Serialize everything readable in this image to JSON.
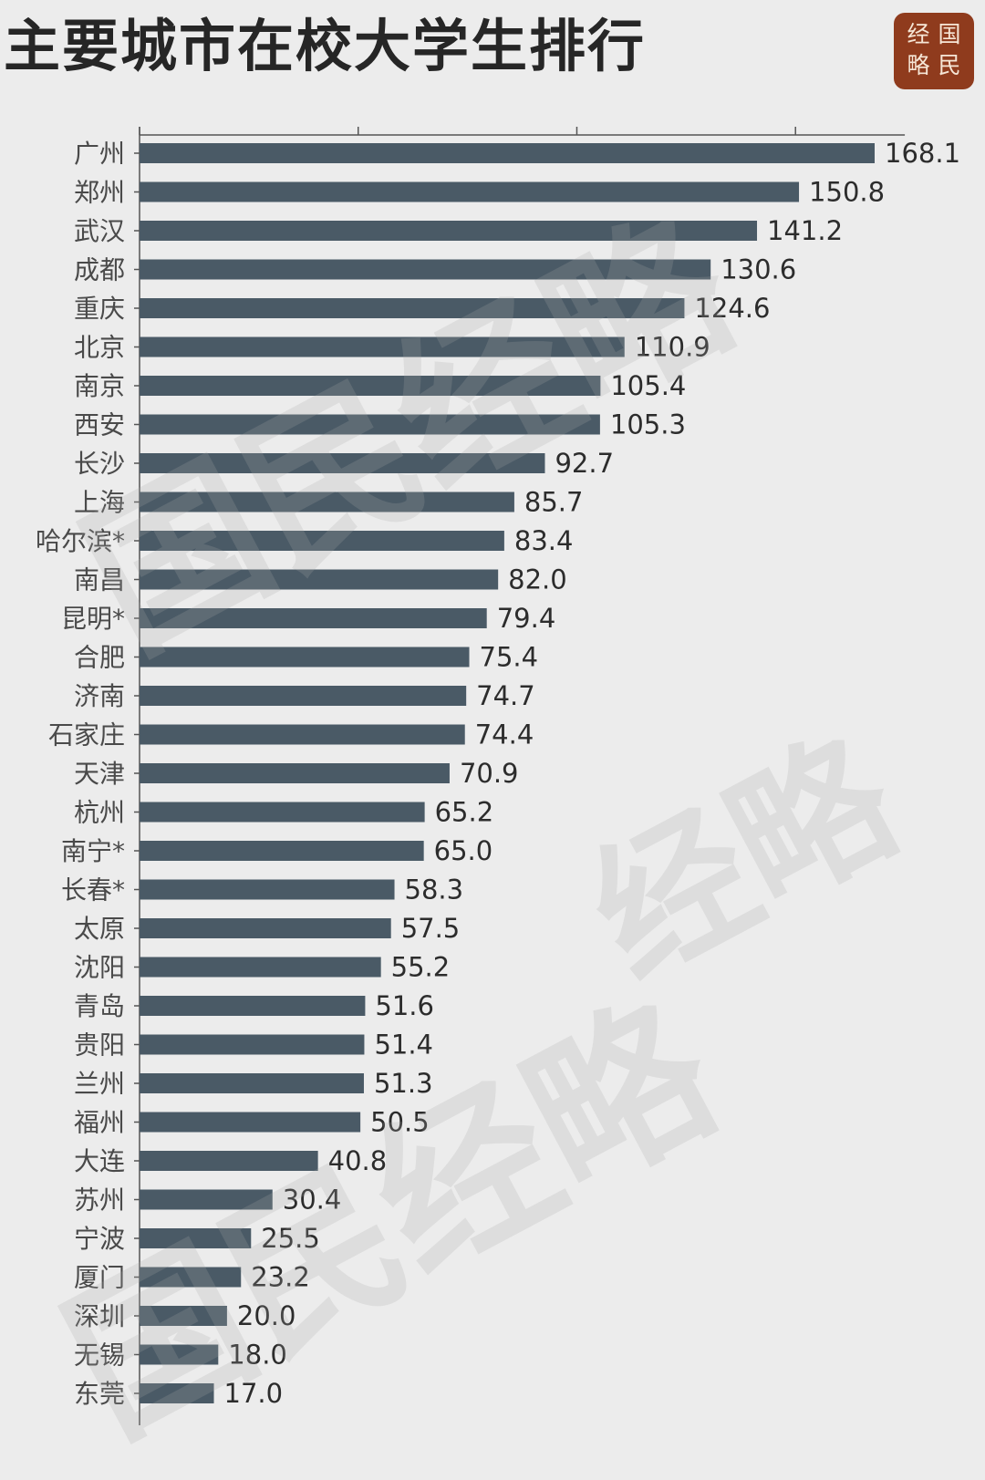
{
  "title": "主要城市在校大学生排行",
  "logo": {
    "chars": [
      "经",
      "国",
      "略",
      "民"
    ]
  },
  "watermark": [
    "国民经略",
    "国民经略",
    "经略"
  ],
  "colors": {
    "bar": "#4a5a66",
    "axis": "#555555",
    "background": "#ececec",
    "logo": "#8f3b1d"
  },
  "chart_data": {
    "type": "bar",
    "orientation": "horizontal",
    "title": "主要城市在校大学生排行",
    "xlim": [
      0,
      175
    ],
    "xticks": [
      0,
      50,
      100,
      150
    ],
    "grid": false,
    "categories": [
      "广州",
      "郑州",
      "武汉",
      "成都",
      "重庆",
      "北京",
      "南京",
      "西安",
      "长沙",
      "上海",
      "哈尔滨*",
      "南昌",
      "昆明*",
      "合肥",
      "济南",
      "石家庄",
      "天津",
      "杭州",
      "南宁*",
      "长春*",
      "太原",
      "沈阳",
      "青岛",
      "贵阳",
      "兰州",
      "福州",
      "大连",
      "苏州",
      "宁波",
      "厦门",
      "深圳",
      "无锡",
      "东莞"
    ],
    "values": [
      168.1,
      150.8,
      141.2,
      130.6,
      124.6,
      110.9,
      105.4,
      105.3,
      92.7,
      85.7,
      83.4,
      82.0,
      79.4,
      75.4,
      74.7,
      74.4,
      70.9,
      65.2,
      65.0,
      58.3,
      57.5,
      55.2,
      51.6,
      51.4,
      51.3,
      50.5,
      40.8,
      30.4,
      25.5,
      23.2,
      20.0,
      18.0,
      17.0
    ],
    "value_labels": [
      "168.1",
      "150.8",
      "141.2",
      "130.6",
      "124.6",
      "110.9",
      "105.4",
      "105.3",
      "92.7",
      "85.7",
      "83.4",
      "82.0",
      "79.4",
      "75.4",
      "74.7",
      "74.4",
      "70.9",
      "65.2",
      "65.0",
      "58.3",
      "57.5",
      "55.2",
      "51.6",
      "51.4",
      "51.3",
      "50.5",
      "40.8",
      "30.4",
      "25.5",
      "23.2",
      "20.0",
      "18.0",
      "17.0"
    ]
  }
}
